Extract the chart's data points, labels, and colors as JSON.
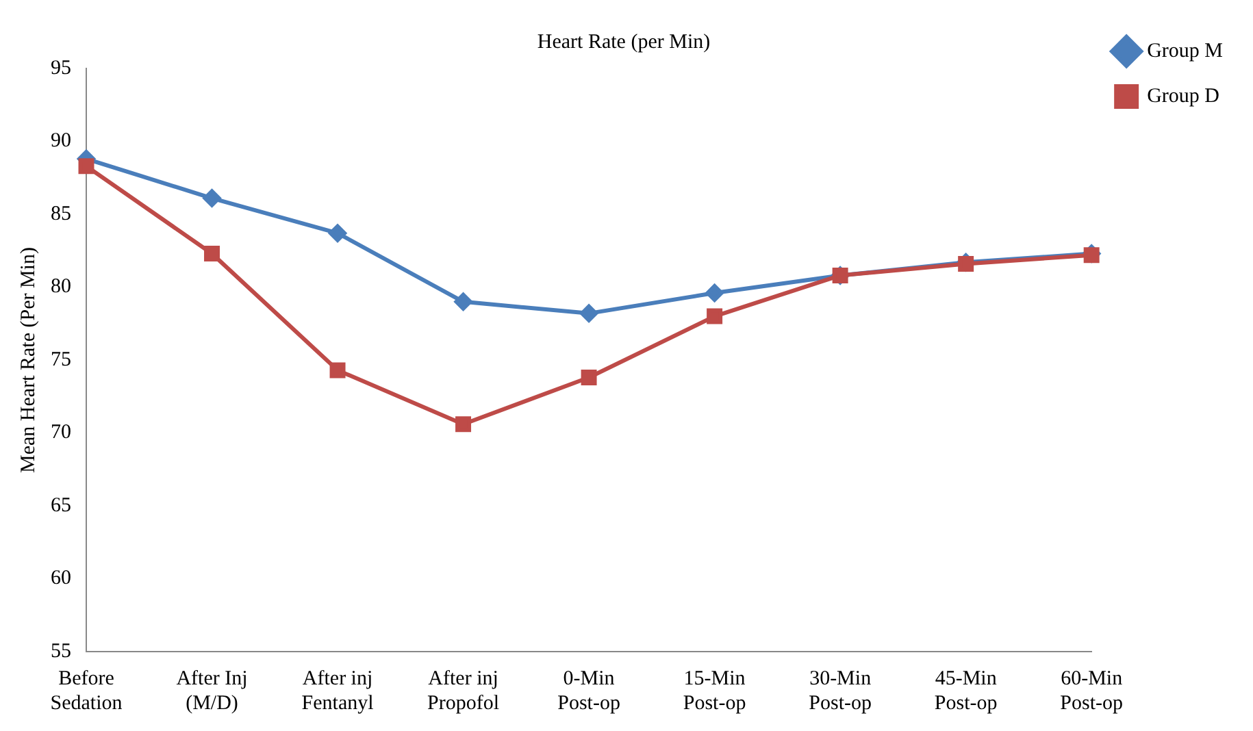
{
  "chart_data": {
    "type": "line",
    "title": "Heart Rate (per Min)",
    "ylabel": "Mean Heart Rate (Per Min)",
    "categories": [
      "Before Sedation",
      "After Inj (M/D)",
      "After inj Fentanyl",
      "After inj Propofol",
      "0-Min Post-op",
      "15-Min Post-op",
      "30-Min Post-op",
      "45-Min Post-op",
      "60-Min Post-op"
    ],
    "series": [
      {
        "name": "Group M",
        "color": "#4a7ebb",
        "marker": "diamond",
        "values": [
          88.8,
          86.1,
          83.7,
          79.0,
          78.2,
          79.6,
          80.8,
          81.7,
          82.3
        ]
      },
      {
        "name": "Group D",
        "color": "#be4b48",
        "marker": "square",
        "values": [
          88.3,
          82.3,
          74.3,
          70.6,
          73.8,
          78.0,
          80.8,
          81.6,
          82.2
        ]
      }
    ],
    "ylim": [
      55,
      95
    ],
    "yticks": [
      55,
      60,
      65,
      70,
      75,
      80,
      85,
      90,
      95
    ],
    "grid": false,
    "legend": "top right",
    "line_style": "solid"
  }
}
